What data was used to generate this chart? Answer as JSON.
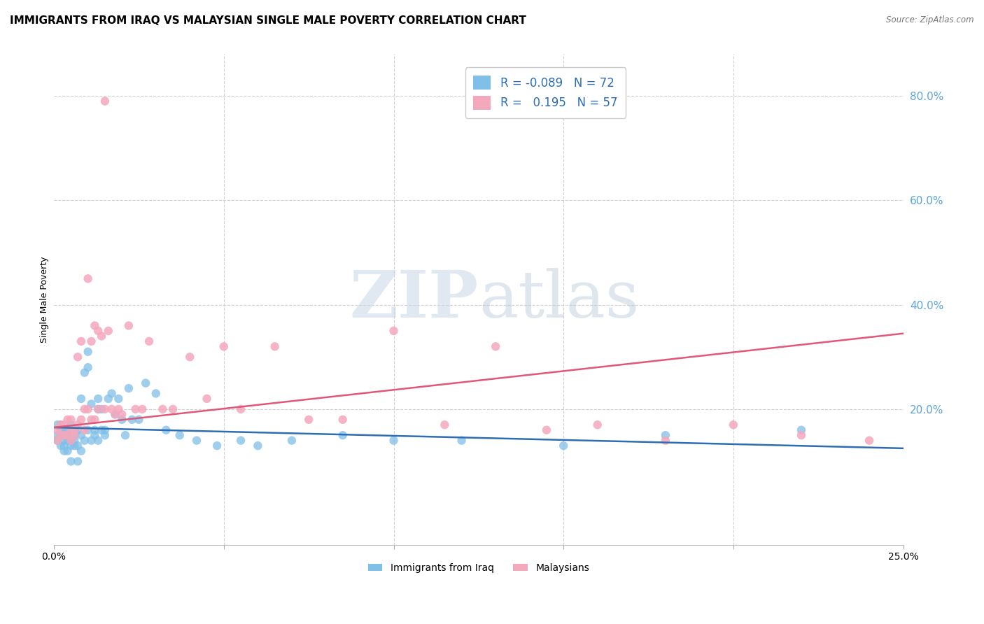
{
  "title": "IMMIGRANTS FROM IRAQ VS MALAYSIAN SINGLE MALE POVERTY CORRELATION CHART",
  "source": "Source: ZipAtlas.com",
  "ylabel": "Single Male Poverty",
  "right_yticks": [
    "80.0%",
    "60.0%",
    "40.0%",
    "20.0%"
  ],
  "right_ytick_vals": [
    0.8,
    0.6,
    0.4,
    0.2
  ],
  "xlim": [
    0.0,
    0.25
  ],
  "ylim": [
    -0.06,
    0.88
  ],
  "legend_label_blue": "Immigrants from Iraq",
  "legend_label_pink": "Malaysians",
  "watermark_zip": "ZIP",
  "watermark_atlas": "atlas",
  "iraq_scatter_x": [
    0.001,
    0.001,
    0.001,
    0.002,
    0.002,
    0.002,
    0.002,
    0.003,
    0.003,
    0.003,
    0.003,
    0.003,
    0.004,
    0.004,
    0.004,
    0.004,
    0.004,
    0.005,
    0.005,
    0.005,
    0.005,
    0.005,
    0.006,
    0.006,
    0.006,
    0.006,
    0.007,
    0.007,
    0.007,
    0.008,
    0.008,
    0.008,
    0.009,
    0.009,
    0.01,
    0.01,
    0.01,
    0.011,
    0.011,
    0.012,
    0.012,
    0.013,
    0.013,
    0.013,
    0.014,
    0.014,
    0.015,
    0.015,
    0.016,
    0.017,
    0.018,
    0.019,
    0.02,
    0.021,
    0.022,
    0.023,
    0.025,
    0.027,
    0.03,
    0.033,
    0.037,
    0.042,
    0.048,
    0.055,
    0.06,
    0.07,
    0.085,
    0.1,
    0.12,
    0.15,
    0.18,
    0.22
  ],
  "iraq_scatter_y": [
    0.14,
    0.15,
    0.17,
    0.13,
    0.16,
    0.15,
    0.17,
    0.12,
    0.14,
    0.15,
    0.16,
    0.13,
    0.14,
    0.15,
    0.16,
    0.12,
    0.15,
    0.13,
    0.14,
    0.16,
    0.17,
    0.1,
    0.13,
    0.15,
    0.16,
    0.14,
    0.1,
    0.13,
    0.16,
    0.12,
    0.15,
    0.22,
    0.14,
    0.27,
    0.16,
    0.28,
    0.31,
    0.14,
    0.21,
    0.15,
    0.16,
    0.2,
    0.22,
    0.14,
    0.16,
    0.2,
    0.15,
    0.16,
    0.22,
    0.23,
    0.19,
    0.22,
    0.18,
    0.15,
    0.24,
    0.18,
    0.18,
    0.25,
    0.23,
    0.16,
    0.15,
    0.14,
    0.13,
    0.14,
    0.13,
    0.14,
    0.15,
    0.14,
    0.14,
    0.13,
    0.15,
    0.16
  ],
  "malaysia_scatter_x": [
    0.001,
    0.001,
    0.002,
    0.002,
    0.003,
    0.003,
    0.004,
    0.004,
    0.005,
    0.005,
    0.005,
    0.006,
    0.006,
    0.007,
    0.007,
    0.008,
    0.008,
    0.009,
    0.009,
    0.01,
    0.01,
    0.011,
    0.011,
    0.012,
    0.012,
    0.013,
    0.013,
    0.014,
    0.015,
    0.016,
    0.017,
    0.018,
    0.019,
    0.02,
    0.022,
    0.024,
    0.026,
    0.028,
    0.032,
    0.035,
    0.04,
    0.045,
    0.05,
    0.055,
    0.065,
    0.075,
    0.085,
    0.1,
    0.115,
    0.13,
    0.145,
    0.16,
    0.18,
    0.2,
    0.22,
    0.24,
    0.015
  ],
  "malaysia_scatter_y": [
    0.14,
    0.16,
    0.15,
    0.17,
    0.15,
    0.17,
    0.15,
    0.18,
    0.16,
    0.18,
    0.14,
    0.16,
    0.15,
    0.3,
    0.17,
    0.18,
    0.33,
    0.16,
    0.2,
    0.2,
    0.45,
    0.33,
    0.18,
    0.36,
    0.18,
    0.35,
    0.2,
    0.34,
    0.2,
    0.35,
    0.2,
    0.19,
    0.2,
    0.19,
    0.36,
    0.2,
    0.2,
    0.33,
    0.2,
    0.2,
    0.3,
    0.22,
    0.32,
    0.2,
    0.32,
    0.18,
    0.18,
    0.35,
    0.17,
    0.32,
    0.16,
    0.17,
    0.14,
    0.17,
    0.15,
    0.14,
    0.79
  ],
  "iraq_line_x": [
    0.0,
    0.25
  ],
  "iraq_line_y": [
    0.165,
    0.125
  ],
  "malaysia_line_x": [
    0.0,
    0.25
  ],
  "malaysia_line_y": [
    0.165,
    0.345
  ],
  "blue_scatter_color": "#7fbfe8",
  "pink_scatter_color": "#f4a8bc",
  "blue_line_color": "#2e6db4",
  "pink_line_color": "#e05878",
  "grid_color": "#d0d0d0",
  "right_axis_color": "#5ba3d9",
  "title_fontsize": 11,
  "axis_label_fontsize": 9,
  "legend_r_blue": "R = -0.089",
  "legend_n_blue": "N = 72",
  "legend_r_pink": "R =   0.195",
  "legend_n_pink": "N = 57"
}
